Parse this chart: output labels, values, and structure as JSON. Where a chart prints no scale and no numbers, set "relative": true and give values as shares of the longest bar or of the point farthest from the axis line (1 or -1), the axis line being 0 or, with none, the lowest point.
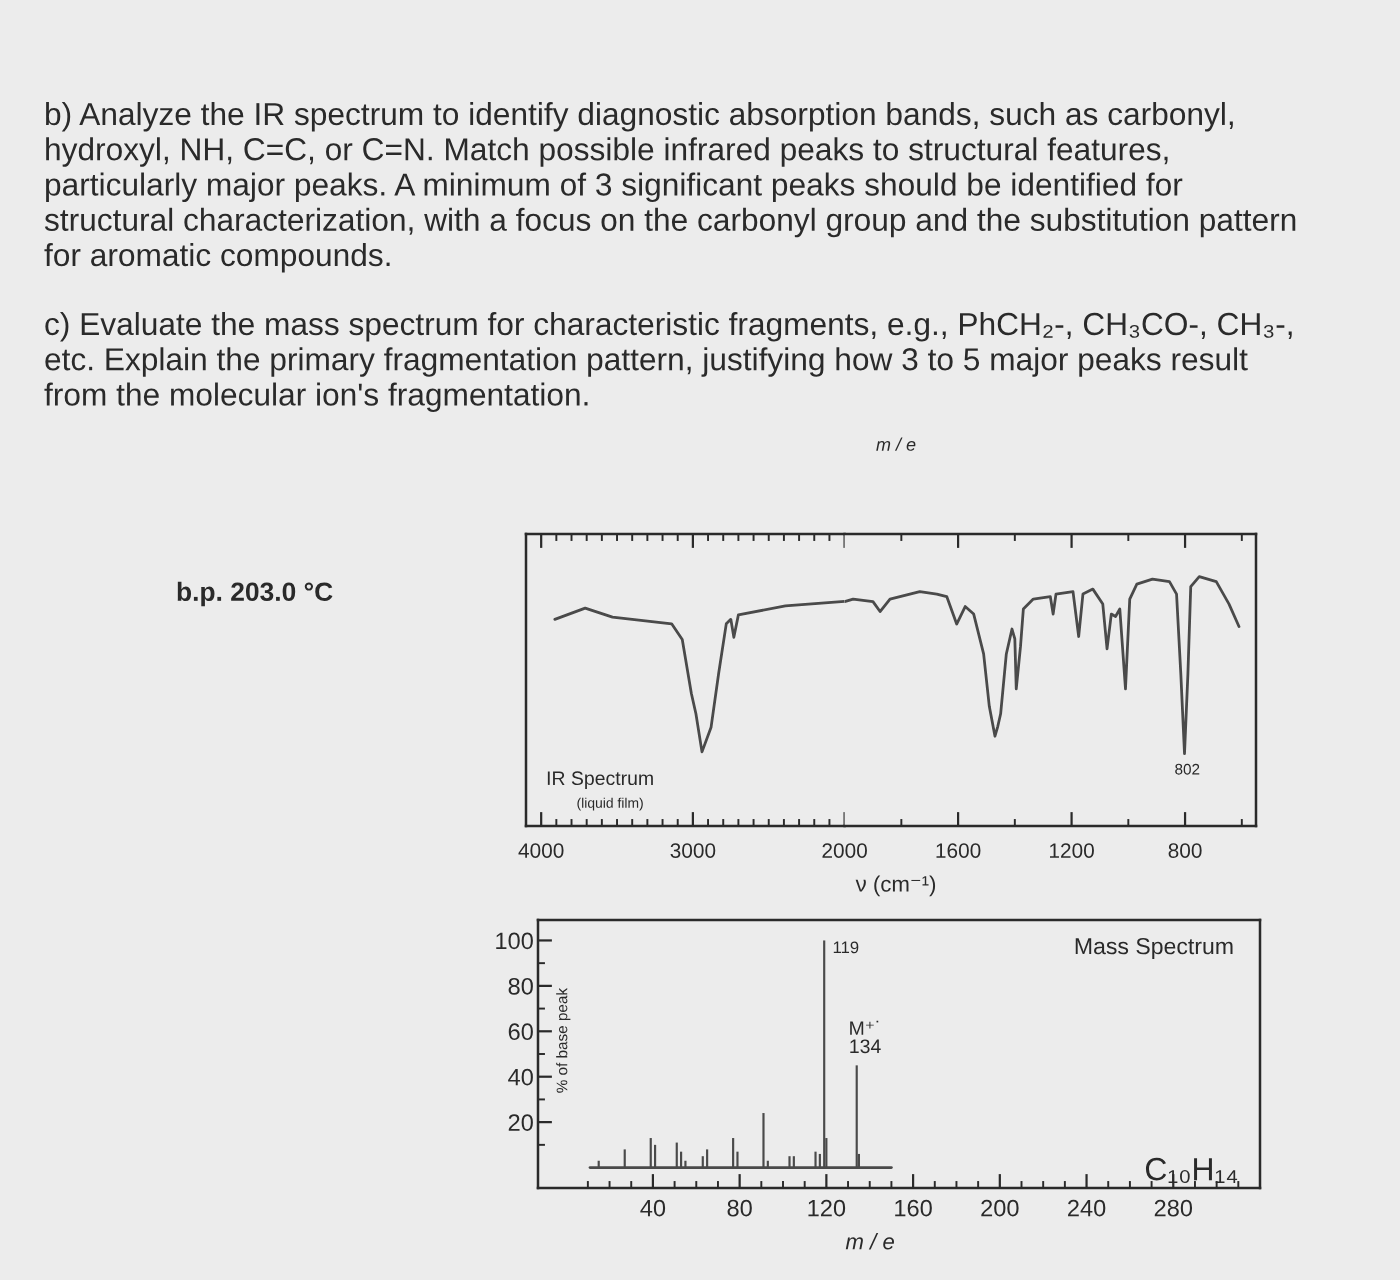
{
  "chart_data": [
    {
      "type": "line",
      "relative": true,
      "color": "#4a4a4a",
      "x": [
        3910,
        3710,
        3530,
        3270,
        3140,
        3070,
        3010,
        2980,
        2940,
        2880,
        2830,
        2780,
        2750,
        2730,
        2700,
        2390,
        2000
      ],
      "values": [
        0.92,
        0.97,
        0.93,
        0.91,
        0.9,
        0.83,
        0.59,
        0.5,
        0.33,
        0.44,
        0.68,
        0.9,
        0.92,
        0.84,
        0.94,
        0.98,
        1.0
      ],
      "xlim": [
        4100,
        2000
      ],
      "xticks": [
        4000,
        {
          "value": 3900,
          "label": null
        },
        {
          "value": 3800,
          "label": null
        },
        {
          "value": 3700,
          "label": null
        },
        {
          "value": 3600,
          "label": null
        },
        {
          "value": 3500,
          "label": null
        },
        {
          "value": 3400,
          "label": null
        },
        {
          "value": 3300,
          "label": null
        },
        {
          "value": 3200,
          "label": null
        },
        {
          "value": 3100,
          "label": null
        },
        3000,
        {
          "value": 2900,
          "label": null
        },
        {
          "value": 2800,
          "label": null
        },
        {
          "value": 2700,
          "label": null
        },
        {
          "value": 2600,
          "label": null
        },
        {
          "value": 2500,
          "label": null
        },
        {
          "value": 2400,
          "label": null
        },
        {
          "value": 2300,
          "label": null
        },
        {
          "value": 2200,
          "label": null
        },
        {
          "value": 2100,
          "label": null
        },
        2000
      ],
      "annotations": [
        "b) Analyze the IR spectrum to identify diagnostic absorption bands, such as carbonyl,\nhydroxyl, NH, C=C, or C=N. Match possible infrared peaks to structural features,\nparticularly major peaks. A minimum of 3 significant peaks should be identified for\nstructural characterization, with a focus on the carbonyl group and the substitution pattern\nfor aromatic compounds.",
        "c) Evaluate the mass spectrum for characteristic fragments, e.g., PhCH₂-, CH₃CO-, CH₃-,\netc. Explain the primary fragmentation pattern, justifying how 3 to 5 major peaks result\nfrom the molecular ion's fragmentation.",
        "m / e",
        "b.p. 203.0 °C",
        "IR Spectrum",
        "(liquid film)"
      ]
    },
    {
      "type": "line",
      "relative": true,
      "color": "#4a4a4a",
      "xlabel": "ν (cm⁻¹)",
      "x": [
        2000,
        1970,
        1900,
        1875,
        1840,
        1735,
        1675,
        1640,
        1605,
        1575,
        1545,
        1510,
        1490,
        1470,
        1460,
        1450,
        1430,
        1410,
        1400,
        1395,
        1380,
        1370,
        1335,
        1275,
        1265,
        1255,
        1195,
        1175,
        1160,
        1125,
        1090,
        1075,
        1060,
        1045,
        1030,
        1010,
        995,
        970,
        915,
        855,
        830,
        815,
        802,
        790,
        780,
        750,
        690,
        645,
        610
      ],
      "values": [
        0.9,
        0.91,
        0.9,
        0.86,
        0.91,
        0.94,
        0.93,
        0.92,
        0.81,
        0.88,
        0.85,
        0.69,
        0.48,
        0.36,
        0.4,
        0.45,
        0.69,
        0.79,
        0.75,
        0.55,
        0.72,
        0.87,
        0.91,
        0.92,
        0.85,
        0.93,
        0.94,
        0.76,
        0.93,
        0.95,
        0.89,
        0.71,
        0.85,
        0.84,
        0.87,
        0.55,
        0.91,
        0.97,
        0.99,
        0.98,
        0.93,
        0.61,
        0.29,
        0.61,
        0.96,
        1.0,
        0.98,
        0.89,
        0.8
      ],
      "xlim": [
        2000,
        550
      ],
      "xticks": [
        {
          "value": 1800,
          "label": null
        },
        1600,
        {
          "value": 1400,
          "label": null
        },
        1200,
        {
          "value": 1000,
          "label": null
        },
        800,
        {
          "value": 600,
          "label": null
        }
      ],
      "annotations": [
        {
          "text": "802",
          "x": 802,
          "y": 0.29
        }
      ]
    },
    {
      "type": "bar",
      "title": "Mass Spectrum",
      "xlabel": "m / e",
      "ylabel": "% of base peak",
      "series": [
        {
          "type": "bar",
          "color": "#4a4a4a",
          "x": [
            15,
            27,
            39,
            41,
            51,
            53,
            55,
            63,
            65,
            77,
            79,
            91,
            93,
            103,
            105,
            115,
            117,
            119,
            120,
            134,
            135
          ],
          "values": [
            3,
            8,
            13,
            10,
            11,
            7,
            3,
            5,
            8,
            13,
            7,
            24,
            3,
            5,
            5,
            7,
            6,
            100,
            13,
            45,
            6
          ]
        },
        {
          "type": "line",
          "color": "#4a4a4a",
          "x": [
            11,
            150
          ],
          "values": [
            0,
            0
          ]
        }
      ],
      "xlim": [
        -13,
        320
      ],
      "ylim": [
        -9,
        109
      ],
      "xticks": [
        {
          "value": 10,
          "label": null
        },
        {
          "value": 20,
          "label": null
        },
        {
          "value": 30,
          "label": null
        },
        40,
        {
          "value": 50,
          "label": null
        },
        {
          "value": 60,
          "label": null
        },
        {
          "value": 70,
          "label": null
        },
        80,
        {
          "value": 90,
          "label": null
        },
        {
          "value": 100,
          "label": null
        },
        {
          "value": 110,
          "label": null
        },
        120,
        {
          "value": 130,
          "label": null
        },
        {
          "value": 140,
          "label": null
        },
        {
          "value": 150,
          "label": null
        },
        160,
        {
          "value": 170,
          "label": null
        },
        {
          "value": 180,
          "label": null
        },
        {
          "value": 190,
          "label": null
        },
        200,
        {
          "value": 210,
          "label": null
        },
        {
          "value": 220,
          "label": null
        },
        {
          "value": 230,
          "label": null
        },
        240,
        {
          "value": 250,
          "label": null
        },
        {
          "value": 260,
          "label": null
        },
        {
          "value": 270,
          "label": null
        },
        280,
        {
          "value": 290,
          "label": null
        },
        {
          "value": 300,
          "label": null
        },
        {
          "value": 310,
          "label": null
        }
      ],
      "yticks": [
        {
          "value": 10,
          "label": null
        },
        20,
        {
          "value": 30,
          "label": null
        },
        40,
        {
          "value": 50,
          "label": null
        },
        60,
        {
          "value": 70,
          "label": null
        },
        80,
        {
          "value": 90,
          "label": null
        },
        100
      ],
      "annotations": [
        {
          "text": "119",
          "x": 119,
          "y": 100
        },
        {
          "text": "M⁺˙\n134",
          "x": 134,
          "y": 45
        },
        "C₁₀H₁₄"
      ]
    }
  ]
}
